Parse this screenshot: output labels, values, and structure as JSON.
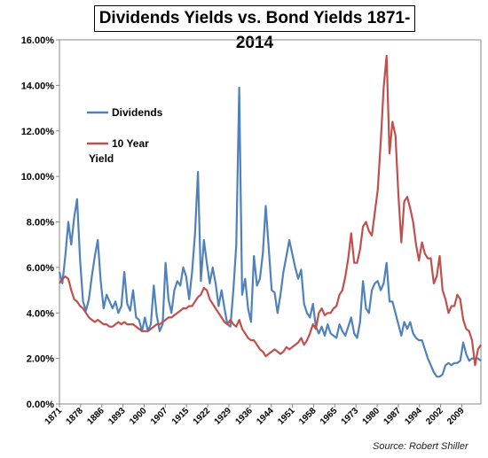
{
  "chart_data": {
    "type": "line",
    "title": "Dividends Yields vs. Bond Yields 1871-2014",
    "source": "Source: Robert Shiller",
    "xlim": [
      1871,
      2014
    ],
    "ylim": [
      0,
      16
    ],
    "y_ticks": [
      "0.00%",
      "2.00%",
      "4.00%",
      "6.00%",
      "8.00%",
      "10.00%",
      "12.00%",
      "14.00%",
      "16.00%"
    ],
    "x_ticks": [
      "1871",
      "1878",
      "1886",
      "1893",
      "1900",
      "1907",
      "1915",
      "1922",
      "1929",
      "1936",
      "1944",
      "1951",
      "1958",
      "1965",
      "1973",
      "1980",
      "1987",
      "1994",
      "2002",
      "2009"
    ],
    "legend_position": "top-left",
    "grid": false,
    "series": [
      {
        "name": "Dividends",
        "color": "#4f81bd",
        "points": [
          [
            1871,
            5.8
          ],
          [
            1872,
            5.3
          ],
          [
            1873,
            6.5
          ],
          [
            1874,
            8.0
          ],
          [
            1875,
            7.0
          ],
          [
            1876,
            8.2
          ],
          [
            1877,
            9.0
          ],
          [
            1878,
            6.3
          ],
          [
            1879,
            4.5
          ],
          [
            1880,
            4.1
          ],
          [
            1881,
            4.6
          ],
          [
            1882,
            5.6
          ],
          [
            1883,
            6.5
          ],
          [
            1884,
            7.2
          ],
          [
            1885,
            5.4
          ],
          [
            1886,
            4.2
          ],
          [
            1887,
            4.8
          ],
          [
            1888,
            4.5
          ],
          [
            1889,
            4.2
          ],
          [
            1890,
            4.5
          ],
          [
            1891,
            4.0
          ],
          [
            1892,
            4.3
          ],
          [
            1893,
            5.8
          ],
          [
            1894,
            4.4
          ],
          [
            1895,
            4.1
          ],
          [
            1896,
            5.0
          ],
          [
            1897,
            3.8
          ],
          [
            1898,
            3.7
          ],
          [
            1899,
            3.2
          ],
          [
            1900,
            3.8
          ],
          [
            1901,
            3.2
          ],
          [
            1902,
            3.5
          ],
          [
            1903,
            5.2
          ],
          [
            1904,
            3.9
          ],
          [
            1905,
            3.2
          ],
          [
            1906,
            3.5
          ],
          [
            1907,
            6.2
          ],
          [
            1908,
            4.6
          ],
          [
            1909,
            4.0
          ],
          [
            1910,
            5.0
          ],
          [
            1911,
            5.4
          ],
          [
            1912,
            5.2
          ],
          [
            1913,
            6.0
          ],
          [
            1914,
            5.6
          ],
          [
            1915,
            4.6
          ],
          [
            1916,
            5.8
          ],
          [
            1917,
            7.5
          ],
          [
            1918,
            10.2
          ],
          [
            1919,
            5.4
          ],
          [
            1920,
            7.2
          ],
          [
            1921,
            6.2
          ],
          [
            1922,
            5.3
          ],
          [
            1923,
            6.0
          ],
          [
            1924,
            5.3
          ],
          [
            1925,
            4.3
          ],
          [
            1926,
            5.0
          ],
          [
            1927,
            4.2
          ],
          [
            1928,
            3.5
          ],
          [
            1929,
            3.4
          ],
          [
            1930,
            5.0
          ],
          [
            1931,
            7.0
          ],
          [
            1932,
            13.9
          ],
          [
            1933,
            4.8
          ],
          [
            1934,
            5.5
          ],
          [
            1935,
            4.2
          ],
          [
            1936,
            3.6
          ],
          [
            1937,
            6.5
          ],
          [
            1938,
            5.2
          ],
          [
            1939,
            5.5
          ],
          [
            1940,
            6.6
          ],
          [
            1941,
            8.7
          ],
          [
            1942,
            6.9
          ],
          [
            1943,
            5.0
          ],
          [
            1944,
            4.9
          ],
          [
            1945,
            4.0
          ],
          [
            1946,
            4.8
          ],
          [
            1947,
            5.8
          ],
          [
            1948,
            6.5
          ],
          [
            1949,
            7.2
          ],
          [
            1950,
            6.6
          ],
          [
            1951,
            6.0
          ],
          [
            1952,
            5.5
          ],
          [
            1953,
            5.9
          ],
          [
            1954,
            4.4
          ],
          [
            1955,
            4.0
          ],
          [
            1956,
            3.8
          ],
          [
            1957,
            4.4
          ],
          [
            1958,
            3.4
          ],
          [
            1959,
            3.1
          ],
          [
            1960,
            3.4
          ],
          [
            1961,
            3.0
          ],
          [
            1962,
            3.5
          ],
          [
            1963,
            3.1
          ],
          [
            1964,
            3.0
          ],
          [
            1965,
            2.9
          ],
          [
            1966,
            3.5
          ],
          [
            1967,
            3.2
          ],
          [
            1968,
            3.0
          ],
          [
            1969,
            3.4
          ],
          [
            1970,
            3.8
          ],
          [
            1971,
            3.1
          ],
          [
            1972,
            2.9
          ],
          [
            1973,
            3.6
          ],
          [
            1974,
            5.4
          ],
          [
            1975,
            4.2
          ],
          [
            1976,
            4.0
          ],
          [
            1977,
            5.0
          ],
          [
            1978,
            5.3
          ],
          [
            1979,
            5.4
          ],
          [
            1980,
            5.0
          ],
          [
            1981,
            5.3
          ],
          [
            1982,
            6.2
          ],
          [
            1983,
            4.5
          ],
          [
            1984,
            4.5
          ],
          [
            1985,
            4.0
          ],
          [
            1986,
            3.5
          ],
          [
            1987,
            3.0
          ],
          [
            1988,
            3.6
          ],
          [
            1989,
            3.3
          ],
          [
            1990,
            3.6
          ],
          [
            1991,
            3.1
          ],
          [
            1992,
            2.9
          ],
          [
            1993,
            2.8
          ],
          [
            1994,
            2.8
          ],
          [
            1995,
            2.4
          ],
          [
            1996,
            2.0
          ],
          [
            1997,
            1.7
          ],
          [
            1998,
            1.4
          ],
          [
            1999,
            1.2
          ],
          [
            2000,
            1.2
          ],
          [
            2001,
            1.3
          ],
          [
            2002,
            1.7
          ],
          [
            2003,
            1.8
          ],
          [
            2004,
            1.7
          ],
          [
            2005,
            1.8
          ],
          [
            2006,
            1.8
          ],
          [
            2007,
            1.9
          ],
          [
            2008,
            2.7
          ],
          [
            2009,
            2.2
          ],
          [
            2010,
            1.9
          ],
          [
            2011,
            2.0
          ],
          [
            2012,
            2.0
          ],
          [
            2013,
            2.0
          ],
          [
            2014,
            1.9
          ]
        ]
      },
      {
        "name": "10 Year Yield",
        "color": "#c0504d",
        "points": [
          [
            1871,
            5.3
          ],
          [
            1872,
            5.5
          ],
          [
            1873,
            5.6
          ],
          [
            1874,
            5.5
          ],
          [
            1875,
            5.0
          ],
          [
            1876,
            4.6
          ],
          [
            1877,
            4.5
          ],
          [
            1878,
            4.3
          ],
          [
            1879,
            4.2
          ],
          [
            1880,
            4.0
          ],
          [
            1881,
            3.8
          ],
          [
            1882,
            3.7
          ],
          [
            1883,
            3.6
          ],
          [
            1884,
            3.7
          ],
          [
            1885,
            3.6
          ],
          [
            1886,
            3.5
          ],
          [
            1887,
            3.5
          ],
          [
            1888,
            3.4
          ],
          [
            1889,
            3.4
          ],
          [
            1890,
            3.5
          ],
          [
            1891,
            3.6
          ],
          [
            1892,
            3.5
          ],
          [
            1893,
            3.6
          ],
          [
            1894,
            3.5
          ],
          [
            1895,
            3.5
          ],
          [
            1896,
            3.5
          ],
          [
            1897,
            3.4
          ],
          [
            1898,
            3.3
          ],
          [
            1899,
            3.2
          ],
          [
            1900,
            3.2
          ],
          [
            1901,
            3.2
          ],
          [
            1902,
            3.3
          ],
          [
            1903,
            3.4
          ],
          [
            1904,
            3.5
          ],
          [
            1905,
            3.5
          ],
          [
            1906,
            3.6
          ],
          [
            1907,
            3.7
          ],
          [
            1908,
            3.8
          ],
          [
            1909,
            3.8
          ],
          [
            1910,
            3.9
          ],
          [
            1911,
            4.0
          ],
          [
            1912,
            4.1
          ],
          [
            1913,
            4.2
          ],
          [
            1914,
            4.2
          ],
          [
            1915,
            4.3
          ],
          [
            1916,
            4.3
          ],
          [
            1917,
            4.5
          ],
          [
            1918,
            4.7
          ],
          [
            1919,
            4.8
          ],
          [
            1920,
            5.1
          ],
          [
            1921,
            5.0
          ],
          [
            1922,
            4.6
          ],
          [
            1923,
            4.4
          ],
          [
            1924,
            4.2
          ],
          [
            1925,
            4.0
          ],
          [
            1926,
            3.8
          ],
          [
            1927,
            3.6
          ],
          [
            1928,
            3.5
          ],
          [
            1929,
            3.7
          ],
          [
            1930,
            3.5
          ],
          [
            1931,
            3.4
          ],
          [
            1932,
            3.7
          ],
          [
            1933,
            3.3
          ],
          [
            1934,
            3.1
          ],
          [
            1935,
            2.9
          ],
          [
            1936,
            2.8
          ],
          [
            1937,
            2.8
          ],
          [
            1938,
            2.6
          ],
          [
            1939,
            2.4
          ],
          [
            1940,
            2.3
          ],
          [
            1941,
            2.1
          ],
          [
            1942,
            2.2
          ],
          [
            1943,
            2.3
          ],
          [
            1944,
            2.4
          ],
          [
            1945,
            2.3
          ],
          [
            1946,
            2.2
          ],
          [
            1947,
            2.3
          ],
          [
            1948,
            2.5
          ],
          [
            1949,
            2.4
          ],
          [
            1950,
            2.5
          ],
          [
            1951,
            2.6
          ],
          [
            1952,
            2.7
          ],
          [
            1953,
            2.9
          ],
          [
            1954,
            2.6
          ],
          [
            1955,
            2.8
          ],
          [
            1956,
            3.1
          ],
          [
            1957,
            3.5
          ],
          [
            1958,
            3.3
          ],
          [
            1959,
            4.0
          ],
          [
            1960,
            4.2
          ],
          [
            1961,
            3.9
          ],
          [
            1962,
            4.0
          ],
          [
            1963,
            4.0
          ],
          [
            1964,
            4.2
          ],
          [
            1965,
            4.3
          ],
          [
            1966,
            4.8
          ],
          [
            1967,
            5.0
          ],
          [
            1968,
            5.6
          ],
          [
            1969,
            6.4
          ],
          [
            1970,
            7.5
          ],
          [
            1971,
            6.2
          ],
          [
            1972,
            6.2
          ],
          [
            1973,
            6.8
          ],
          [
            1974,
            7.8
          ],
          [
            1975,
            8.0
          ],
          [
            1976,
            7.6
          ],
          [
            1977,
            7.4
          ],
          [
            1978,
            8.4
          ],
          [
            1979,
            9.4
          ],
          [
            1980,
            11.5
          ],
          [
            1981,
            13.9
          ],
          [
            1982,
            15.3
          ],
          [
            1983,
            11.0
          ],
          [
            1984,
            12.4
          ],
          [
            1985,
            11.8
          ],
          [
            1986,
            9.2
          ],
          [
            1987,
            7.1
          ],
          [
            1988,
            8.9
          ],
          [
            1989,
            9.1
          ],
          [
            1990,
            8.6
          ],
          [
            1991,
            8.0
          ],
          [
            1992,
            7.0
          ],
          [
            1993,
            6.3
          ],
          [
            1994,
            7.1
          ],
          [
            1995,
            6.6
          ],
          [
            1996,
            6.4
          ],
          [
            1997,
            6.4
          ],
          [
            1998,
            5.3
          ],
          [
            1999,
            5.6
          ],
          [
            2000,
            6.5
          ],
          [
            2001,
            5.0
          ],
          [
            2002,
            4.6
          ],
          [
            2003,
            4.0
          ],
          [
            2004,
            4.3
          ],
          [
            2005,
            4.3
          ],
          [
            2006,
            4.8
          ],
          [
            2007,
            4.6
          ],
          [
            2008,
            3.7
          ],
          [
            2009,
            3.3
          ],
          [
            2010,
            3.2
          ],
          [
            2011,
            2.8
          ],
          [
            2012,
            1.7
          ],
          [
            2013,
            2.4
          ],
          [
            2014,
            2.6
          ]
        ]
      }
    ]
  }
}
